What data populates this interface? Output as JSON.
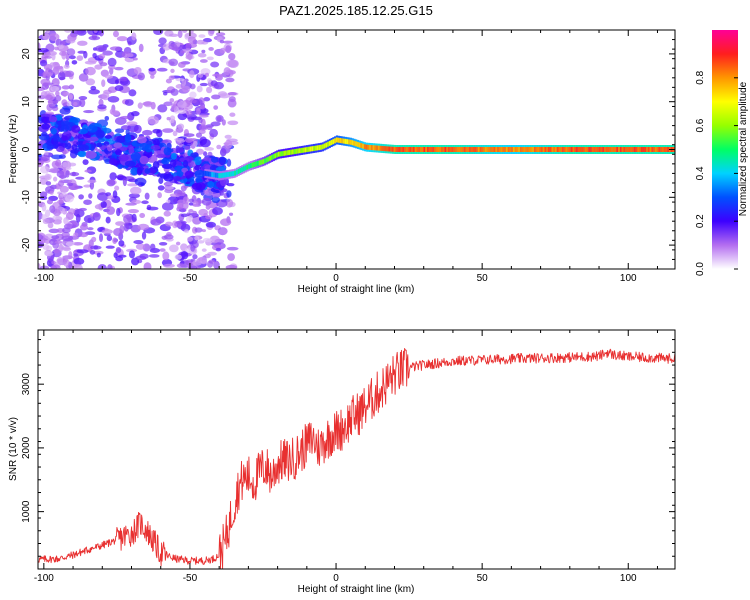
{
  "chart_data": [
    {
      "type": "heatmap",
      "title": "PAZ1.2025.185.12.25.G15",
      "xlabel": "Height of straight line (km)",
      "ylabel": "Frequency (Hz)",
      "xlim": [
        -102,
        116
      ],
      "ylim": [
        -25,
        25
      ],
      "xticks": [
        -100,
        -50,
        0,
        50,
        100
      ],
      "yticks": [
        -20,
        -10,
        0,
        10,
        20
      ],
      "grid": false,
      "colorbar": {
        "label": "Normalized spectral amplitude",
        "range": [
          0,
          1
        ],
        "ticks": [
          0.0,
          0.2,
          0.4,
          0.6,
          0.8
        ],
        "tick_labels": [
          "0.0",
          "0.2",
          "0.4",
          "0.6",
          "0.8"
        ],
        "colors": [
          "#ffffff",
          "#b46ef0",
          "#3c00ff",
          "#0050ff",
          "#00d2ff",
          "#00ff64",
          "#96ff00",
          "#ffff00",
          "#ff9600",
          "#ff1e1e",
          "#ff0096"
        ]
      },
      "ridge": {
        "x": [
          -100,
          -90,
          -80,
          -70,
          -60,
          -50,
          -45,
          -40,
          -35,
          -30,
          -25,
          -20,
          -15,
          -10,
          -5,
          0,
          5,
          10,
          20,
          40,
          60,
          80,
          100,
          116
        ],
        "freq": [
          4,
          3,
          1,
          -1,
          -2,
          -4,
          -5,
          -5.5,
          -5,
          -3.5,
          -2.5,
          -1,
          -0.5,
          0,
          0.5,
          2,
          1.5,
          0.5,
          0,
          0,
          0,
          0,
          0,
          0
        ],
        "amplitude": [
          0.15,
          0.2,
          0.25,
          0.3,
          0.3,
          0.35,
          0.4,
          0.5,
          0.55,
          0.6,
          0.65,
          0.7,
          0.7,
          0.75,
          0.75,
          0.8,
          0.85,
          0.9,
          0.95,
          0.95,
          0.9,
          0.95,
          0.95,
          0.95
        ]
      }
    },
    {
      "type": "line",
      "xlabel": "Height of straight line (km)",
      "ylabel": "SNR (10 * v/v)",
      "xlim": [
        -102,
        116
      ],
      "ylim": [
        100,
        3850
      ],
      "xticks": [
        -100,
        -50,
        0,
        50,
        100
      ],
      "yticks": [
        1000,
        2000,
        3000
      ],
      "grid": false,
      "color": "#e83030",
      "series": [
        {
          "x": [
            -102,
            -95,
            -90,
            -85,
            -80,
            -75,
            -70,
            -67,
            -65,
            -62,
            -60,
            -55,
            -50,
            -45,
            -42,
            -40,
            -38,
            -36,
            -34,
            -32,
            -30,
            -28,
            -26,
            -24,
            -22,
            -20,
            -18,
            -16,
            -14,
            -12,
            -10,
            -8,
            -6,
            -4,
            -2,
            0,
            2,
            4,
            6,
            8,
            10,
            12,
            14,
            16,
            18,
            20,
            22,
            25,
            30,
            35,
            40,
            50,
            60,
            70,
            80,
            90,
            93,
            95,
            100,
            105,
            110,
            116
          ],
          "y": [
            250,
            260,
            320,
            400,
            470,
            560,
            660,
            820,
            720,
            500,
            350,
            260,
            230,
            230,
            260,
            320,
            520,
            900,
            1300,
            1500,
            1550,
            1450,
            1650,
            1700,
            1550,
            1750,
            1800,
            1800,
            1850,
            1950,
            2050,
            2150,
            2000,
            2100,
            2200,
            2250,
            2300,
            2400,
            2500,
            2550,
            2650,
            2750,
            2850,
            2950,
            3050,
            3150,
            3200,
            3260,
            3300,
            3330,
            3360,
            3380,
            3400,
            3410,
            3420,
            3440,
            3500,
            3460,
            3430,
            3420,
            3410,
            3400
          ]
        }
      ]
    }
  ]
}
